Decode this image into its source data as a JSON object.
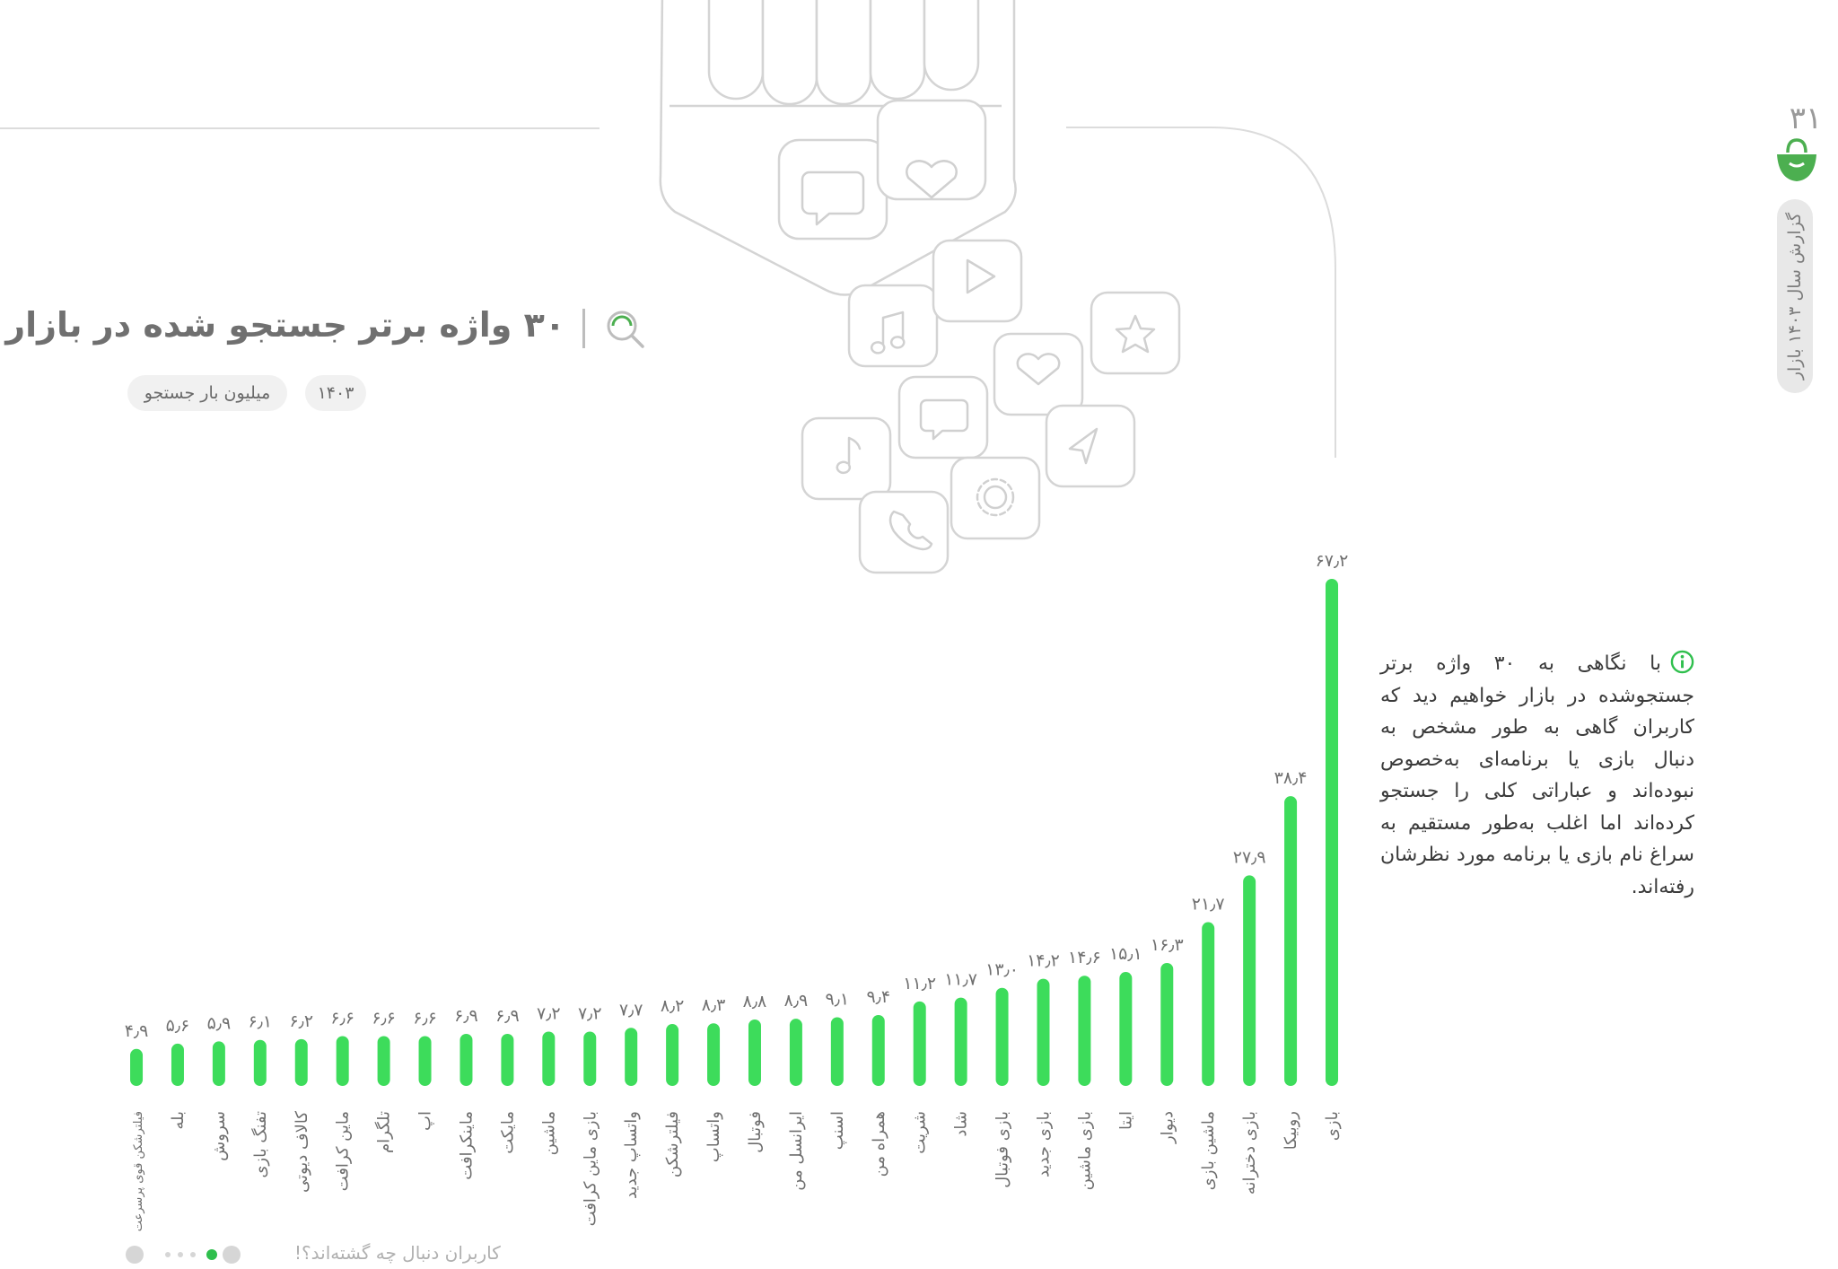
{
  "header": {
    "title": "۳۰ واژه برتر جستجو شده در بازار",
    "unit_label": "میلیون بار جستجو",
    "year_label": "۱۴۰۳",
    "search_icon": "search-icon"
  },
  "sidebar": {
    "page_number": "۳۱",
    "report_label": "گزارش سال ۱۴۰۳ بازار",
    "logo_icon": "bazaar-bag-icon"
  },
  "note": {
    "icon": "info-icon",
    "text": "با نگاهی به ۳۰ واژه برتر جستجوشده در بازار خواهیم دید که کاربران گاهی به طور مشخص به دنبال بازی یا برنامه‌ای به‌خصوص نبوده‌اند و عباراتی کلی را جستجو کرده‌اند اما اغلب به‌طور مستقیم به سراغ نام بازی یا برنامه مورد نظرشان رفته‌اند."
  },
  "footer": {
    "section_label": "کاربران دنبال چه گشته‌اند؟!",
    "pagination": {
      "count": 5,
      "active": 1
    }
  },
  "colors": {
    "bar": "#3ddc5b",
    "accent": "#4caf50",
    "text_muted": "#707070"
  },
  "chart_data": {
    "type": "bar",
    "orientation": "vertical",
    "sort": "descending-right-to-left",
    "ylim": [
      0,
      70
    ],
    "grid": false,
    "categories": [
      "بازی",
      "روبیکا",
      "بازی دخترانه",
      "ماشین بازی",
      "دیوار",
      "ایتا",
      "بازی ماشین",
      "بازی جدید",
      "بازی فوتبال",
      "شاد",
      "شریت",
      "همراه من",
      "اسنپ",
      "ایرانسل من",
      "فوتبال",
      "واتساپ",
      "فیلترشکن",
      "واتساپ جدید",
      "بازی ماین کرافت",
      "ماشین",
      "مایکت",
      "ماینکرافت",
      "اپ",
      "تلگرام",
      "ماین کرافت",
      "کالاف دیوتی",
      "تفنگ بازی",
      "سروش",
      "بله",
      "فیلترشکن قوی پرسرعت"
    ],
    "values": [
      67.2,
      38.4,
      27.9,
      21.7,
      16.3,
      15.1,
      14.6,
      14.2,
      13.0,
      11.7,
      11.2,
      9.4,
      9.1,
      8.9,
      8.8,
      8.3,
      8.2,
      7.7,
      7.2,
      7.2,
      6.9,
      6.9,
      6.6,
      6.6,
      6.6,
      6.2,
      6.1,
      5.9,
      5.6,
      4.9
    ],
    "value_labels": [
      "۶۷٫۲",
      "۳۸٫۴",
      "۲۷٫۹",
      "۲۱٫۷",
      "۱۶٫۳",
      "۱۵٫۱",
      "۱۴٫۶",
      "۱۴٫۲",
      "۱۳٫۰",
      "۱۱٫۷",
      "۱۱٫۲",
      "۹٫۴",
      "۹٫۱",
      "۸٫۹",
      "۸٫۸",
      "۸٫۳",
      "۸٫۲",
      "۷٫۷",
      "۷٫۲",
      "۷٫۲",
      "۶٫۹",
      "۶٫۹",
      "۶٫۶",
      "۶٫۶",
      "۶٫۶",
      "۶٫۲",
      "۶٫۱",
      "۵٫۹",
      "۵٫۶",
      "۴٫۹"
    ]
  }
}
